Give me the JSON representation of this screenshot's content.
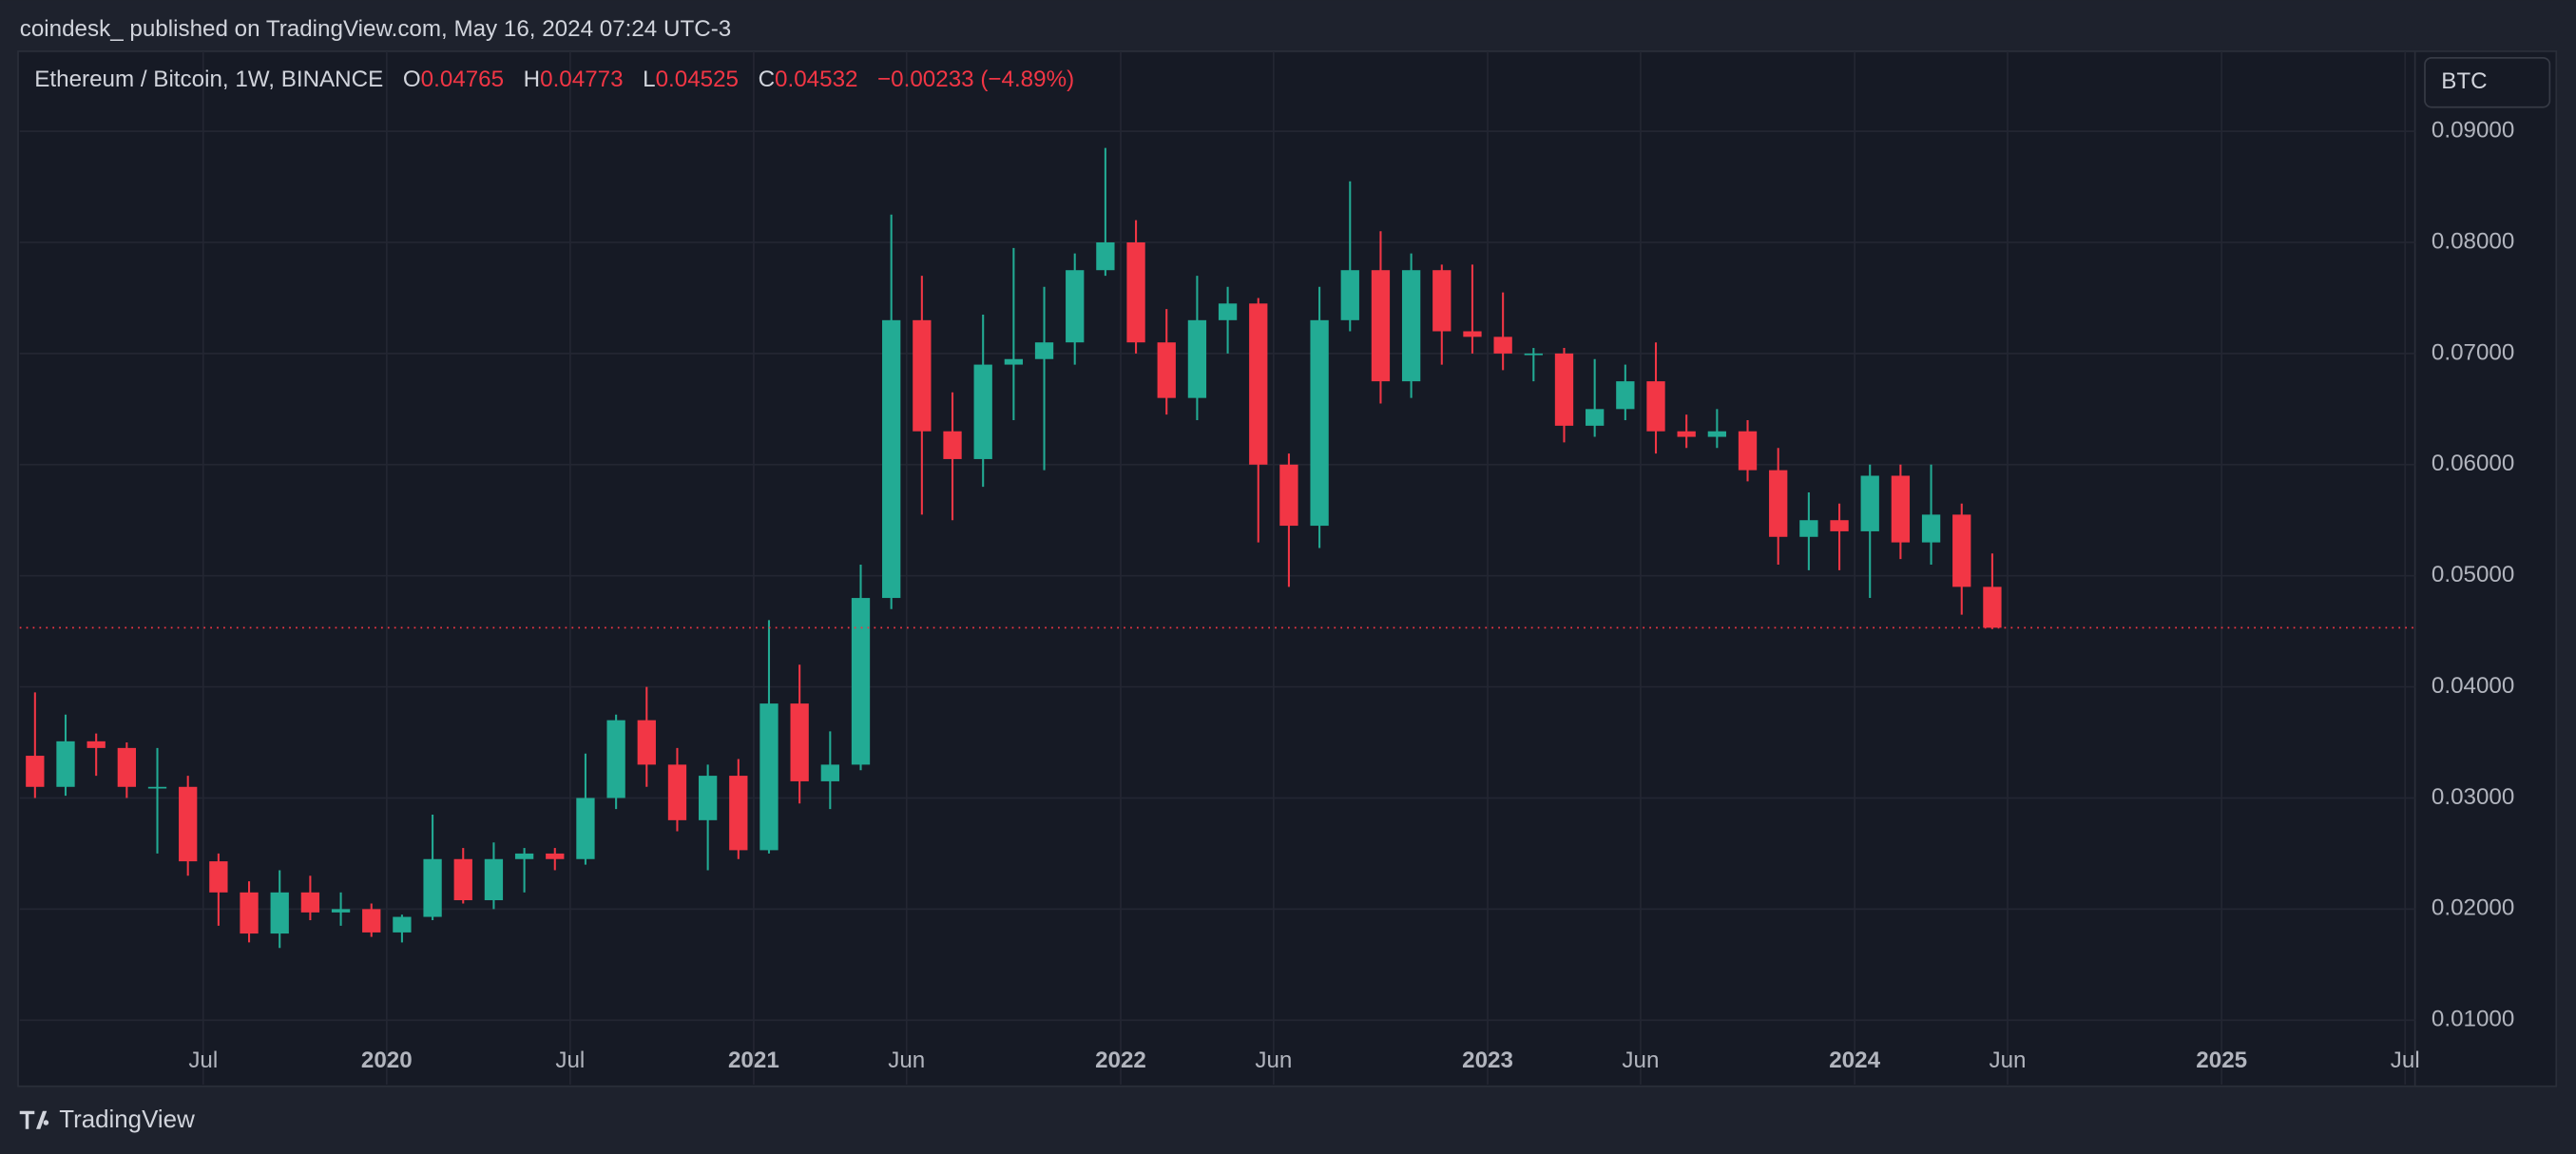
{
  "header": {
    "title": "coindesk_ published on TradingView.com, May 16, 2024 07:24 UTC-3"
  },
  "legend": {
    "symbol": "Ethereum / Bitcoin, 1W, BINANCE",
    "open_label": "O",
    "open": "0.04765",
    "high_label": "H",
    "high": "0.04773",
    "low_label": "L",
    "low": "0.04525",
    "close_label": "C",
    "close": "0.04532",
    "change": "−0.00233 (−4.89%)"
  },
  "currency_button": "BTC",
  "footer": {
    "brand": "TradingView"
  },
  "chart_data": {
    "type": "candlestick",
    "up_color": "#22ab94",
    "down_color": "#f23645",
    "grid": true,
    "x": [
      "2019-01",
      "2019-02",
      "2019-03",
      "2019-04",
      "2019-05",
      "2019-06",
      "2019-07",
      "2019-08",
      "2019-09",
      "2019-10",
      "2019-11",
      "2019-12",
      "2020-01",
      "2020-02",
      "2020-03",
      "2020-04",
      "2020-05",
      "2020-06",
      "2020-07",
      "2020-08",
      "2020-09",
      "2020-10",
      "2020-11",
      "2020-12",
      "2021-01",
      "2021-02",
      "2021-03",
      "2021-04",
      "2021-05",
      "2021-06",
      "2021-07",
      "2021-08",
      "2021-09",
      "2021-10",
      "2021-11",
      "2021-12",
      "2022-01",
      "2022-02",
      "2022-03",
      "2022-04",
      "2022-05",
      "2022-06",
      "2022-07",
      "2022-08",
      "2022-09",
      "2022-10",
      "2022-11",
      "2022-12",
      "2023-01",
      "2023-02",
      "2023-03",
      "2023-04",
      "2023-05",
      "2023-06",
      "2023-07",
      "2023-08",
      "2023-09",
      "2023-10",
      "2023-11",
      "2023-12",
      "2024-01",
      "2024-02",
      "2024-03",
      "2024-04",
      "2024-05"
    ],
    "open": [
      0.0338,
      0.031,
      0.0351,
      0.0345,
      0.031,
      0.031,
      0.0243,
      0.0215,
      0.0178,
      0.0215,
      0.0197,
      0.02,
      0.0179,
      0.0193,
      0.0245,
      0.0208,
      0.0245,
      0.025,
      0.0245,
      0.03,
      0.037,
      0.033,
      0.028,
      0.032,
      0.0253,
      0.0385,
      0.0315,
      0.033,
      0.048,
      0.073,
      0.063,
      0.0605,
      0.069,
      0.0695,
      0.071,
      0.0775,
      0.08,
      0.071,
      0.066,
      0.073,
      0.0745,
      0.06,
      0.0545,
      0.073,
      0.0775,
      0.0675,
      0.0775,
      0.072,
      0.0715,
      0.07,
      0.07,
      0.0635,
      0.065,
      0.0675,
      0.063,
      0.0625,
      0.063,
      0.0595,
      0.0535,
      0.055,
      0.054,
      0.059,
      0.053,
      0.0555,
      0.049
    ],
    "high": [
      0.0395,
      0.0375,
      0.0358,
      0.035,
      0.0345,
      0.032,
      0.025,
      0.0225,
      0.0235,
      0.023,
      0.0215,
      0.0205,
      0.0195,
      0.0285,
      0.0255,
      0.026,
      0.0255,
      0.0255,
      0.034,
      0.0375,
      0.04,
      0.0345,
      0.033,
      0.0335,
      0.046,
      0.042,
      0.036,
      0.051,
      0.0825,
      0.077,
      0.0665,
      0.0735,
      0.0795,
      0.076,
      0.079,
      0.0885,
      0.082,
      0.074,
      0.077,
      0.076,
      0.075,
      0.061,
      0.076,
      0.0855,
      0.081,
      0.079,
      0.078,
      0.078,
      0.0755,
      0.0705,
      0.0705,
      0.0695,
      0.069,
      0.071,
      0.0645,
      0.065,
      0.064,
      0.0615,
      0.0575,
      0.0565,
      0.06,
      0.06,
      0.06,
      0.0565,
      0.052
    ],
    "low": [
      0.03,
      0.0302,
      0.032,
      0.03,
      0.025,
      0.023,
      0.0185,
      0.017,
      0.0165,
      0.019,
      0.0185,
      0.0175,
      0.017,
      0.019,
      0.0205,
      0.02,
      0.0215,
      0.0235,
      0.024,
      0.029,
      0.031,
      0.027,
      0.0235,
      0.0245,
      0.025,
      0.0295,
      0.029,
      0.0325,
      0.047,
      0.0555,
      0.055,
      0.058,
      0.064,
      0.0595,
      0.069,
      0.077,
      0.07,
      0.0645,
      0.064,
      0.07,
      0.053,
      0.049,
      0.0525,
      0.072,
      0.0655,
      0.066,
      0.069,
      0.07,
      0.0685,
      0.0675,
      0.062,
      0.0625,
      0.064,
      0.061,
      0.0615,
      0.0615,
      0.0585,
      0.051,
      0.0505,
      0.0505,
      0.048,
      0.0515,
      0.051,
      0.0465,
      0.0452
    ],
    "close": [
      0.031,
      0.0351,
      0.0345,
      0.031,
      0.031,
      0.0243,
      0.0215,
      0.0178,
      0.0215,
      0.0197,
      0.02,
      0.0179,
      0.0193,
      0.0245,
      0.0208,
      0.0245,
      0.025,
      0.0245,
      0.03,
      0.037,
      0.033,
      0.028,
      0.032,
      0.0253,
      0.0385,
      0.0315,
      0.033,
      0.048,
      0.073,
      0.063,
      0.0605,
      0.069,
      0.0695,
      0.071,
      0.0775,
      0.08,
      0.071,
      0.066,
      0.073,
      0.0745,
      0.06,
      0.0545,
      0.073,
      0.0775,
      0.0675,
      0.0775,
      0.072,
      0.0715,
      0.07,
      0.07,
      0.0635,
      0.065,
      0.0675,
      0.063,
      0.0625,
      0.063,
      0.0595,
      0.0535,
      0.055,
      0.054,
      0.059,
      0.053,
      0.0555,
      0.049,
      0.04532
    ],
    "xlim": [
      "2019-01",
      "2025-07"
    ],
    "xticks": [
      {
        "value": "2019-07",
        "label": "Jul"
      },
      {
        "value": "2020-01",
        "label": "2020"
      },
      {
        "value": "2020-07",
        "label": "Jul"
      },
      {
        "value": "2021-01",
        "label": "2021"
      },
      {
        "value": "2021-06",
        "label": "Jun"
      },
      {
        "value": "2022-01",
        "label": "2022"
      },
      {
        "value": "2022-06",
        "label": "Jun"
      },
      {
        "value": "2023-01",
        "label": "2023"
      },
      {
        "value": "2023-06",
        "label": "Jun"
      },
      {
        "value": "2024-01",
        "label": "2024"
      },
      {
        "value": "2024-06",
        "label": "Jun"
      },
      {
        "value": "2025-01",
        "label": "2025"
      },
      {
        "value": "2025-07",
        "label": "Jul"
      }
    ],
    "ylim": [
      0.0042,
      0.0972
    ],
    "yticks": [
      {
        "value": 0.01,
        "label": "0.01000"
      },
      {
        "value": 0.02,
        "label": "0.02000"
      },
      {
        "value": 0.03,
        "label": "0.03000"
      },
      {
        "value": 0.04,
        "label": "0.04000"
      },
      {
        "value": 0.05,
        "label": "0.05000"
      },
      {
        "value": 0.06,
        "label": "0.06000"
      },
      {
        "value": 0.07,
        "label": "0.07000"
      },
      {
        "value": 0.08,
        "label": "0.08000"
      },
      {
        "value": 0.09,
        "label": "0.09000"
      }
    ]
  }
}
